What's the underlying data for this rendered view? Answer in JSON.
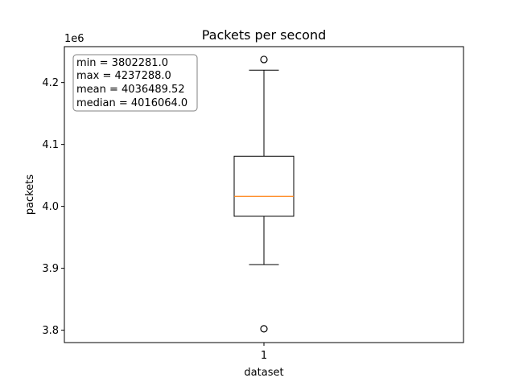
{
  "chart_data": {
    "type": "box",
    "title": "Packets per second",
    "xlabel": "dataset",
    "ylabel": "packets",
    "y_offset_label": "1e6",
    "y_scale": 1000000,
    "categories": [
      "1"
    ],
    "ylim": [
      3780000,
      4258000
    ],
    "yticks": [
      3800000,
      3900000,
      4000000,
      4100000,
      4200000
    ],
    "ytick_labels": [
      "3.8",
      "3.9",
      "4.0",
      "4.1",
      "4.2"
    ],
    "box": {
      "whisker_low": 3906000,
      "q1": 3984000,
      "median": 4016064.0,
      "q3": 4081000,
      "whisker_high": 4220000,
      "outliers": [
        3802281.0,
        4237288.0
      ]
    },
    "stats": {
      "min": "min = 3802281.0",
      "max": "max = 4237288.0",
      "mean": "mean = 4036489.52",
      "median": "median = 4016064.0"
    },
    "colors": {
      "box": "#000000",
      "median_line": "#ff7f0e",
      "stats_box_border": "#808080"
    },
    "grid": false
  }
}
